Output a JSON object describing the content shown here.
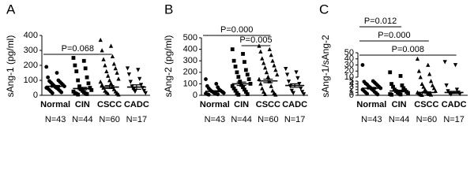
{
  "chart_data": [
    {
      "type": "dot",
      "panel": "A",
      "ylabel": "sAng-1 (pg/ml)",
      "categories": [
        "Normal",
        "CIN",
        "CSCC",
        "CADC"
      ],
      "n_labels": [
        "N=43",
        "N=44",
        "N=60",
        "N=17"
      ],
      "ylim": [
        0,
        400
      ],
      "yticks": [
        0,
        100,
        200,
        300,
        400
      ],
      "color": "#000000",
      "markers": [
        "circle",
        "square",
        "triangle",
        "triangle-down"
      ],
      "groups": [
        {
          "values": [
            190,
            150,
            120,
            100,
            95,
            90,
            85,
            80,
            75,
            70,
            65,
            60,
            55,
            50,
            48,
            45,
            40,
            35,
            30,
            25,
            20,
            15
          ],
          "mean": 60,
          "sem": 6
        },
        {
          "values": [
            250,
            230,
            200,
            180,
            160,
            120,
            100,
            80,
            60,
            50,
            40,
            35,
            30,
            25,
            20,
            15,
            12,
            10,
            8,
            5
          ],
          "mean": 45,
          "sem": 8
        },
        {
          "values": [
            370,
            330,
            300,
            260,
            240,
            210,
            200,
            180,
            160,
            150,
            130,
            110,
            100,
            90,
            80,
            70,
            60,
            50,
            40,
            30,
            25,
            20,
            15,
            10,
            5
          ],
          "mean": 55,
          "sem": 10
        },
        {
          "values": [
            180,
            170,
            140,
            110,
            90,
            70,
            60,
            50,
            40,
            30,
            25,
            15
          ],
          "mean": 55,
          "sem": 15
        }
      ],
      "comparisons": [
        {
          "label": "P=0.068",
          "from": 0,
          "to": 2
        }
      ]
    },
    {
      "type": "dot",
      "panel": "B",
      "ylabel": "sAng-2 (pg/ml)",
      "categories": [
        "Normal",
        "CIN",
        "CSCC",
        "CADC"
      ],
      "n_labels": [
        "N=43",
        "N=44",
        "N=60",
        "N=17"
      ],
      "ylim": [
        0,
        500
      ],
      "yticks": [
        0,
        100,
        200,
        300,
        400,
        500
      ],
      "color": "#000000",
      "markers": [
        "circle",
        "square",
        "triangle",
        "triangle-down"
      ],
      "groups": [
        {
          "values": [
            140,
            100,
            80,
            70,
            60,
            50,
            45,
            40,
            35,
            30,
            25,
            20,
            18,
            15,
            12,
            10,
            8,
            5
          ],
          "mean": 35,
          "sem": 5
        },
        {
          "values": [
            400,
            360,
            300,
            290,
            250,
            220,
            200,
            180,
            160,
            140,
            120,
            100,
            90,
            80,
            70,
            60,
            50,
            40,
            30,
            20,
            10,
            5
          ],
          "mean": 100,
          "sem": 15
        },
        {
          "values": [
            430,
            400,
            380,
            350,
            320,
            300,
            280,
            260,
            240,
            220,
            200,
            180,
            160,
            140,
            120,
            100,
            80,
            60,
            40,
            30,
            20,
            10,
            5
          ],
          "mean": 125,
          "sem": 15
        },
        {
          "values": [
            230,
            200,
            180,
            150,
            120,
            100,
            80,
            60,
            40,
            30,
            20,
            10
          ],
          "mean": 85,
          "sem": 15
        }
      ],
      "comparisons": [
        {
          "label": "P=0.000",
          "from": 0,
          "to": 2
        },
        {
          "label": "P=0.005",
          "from": 1,
          "to": 2
        }
      ]
    },
    {
      "type": "dot",
      "panel": "C",
      "ylabel": "sAng-1/sAng-2",
      "categories": [
        "Normal",
        "CIN",
        "CSCC",
        "CADC"
      ],
      "n_labels": [
        "N=43",
        "N=44",
        "N=60",
        "N=17"
      ],
      "ylim": [
        0,
        50
      ],
      "yticks": [
        0,
        1,
        2,
        3,
        4,
        5,
        10,
        20,
        30,
        40,
        50
      ],
      "axis_break": [
        5,
        10
      ],
      "color": "#000000",
      "markers": [
        "circle",
        "square",
        "triangle",
        "triangle-down"
      ],
      "groups": [
        {
          "values": [
            30,
            5,
            4.8,
            4.5,
            4.2,
            4,
            3.8,
            3.5,
            3.2,
            3,
            2.8,
            2.5,
            2.2,
            2,
            1.8,
            1.5,
            1.2,
            1,
            0.8,
            0.5,
            0.3
          ],
          "mean": 2.5,
          "sem": 0.3
        },
        {
          "values": [
            18,
            12,
            4,
            3.5,
            3,
            2.5,
            2,
            1.8,
            1.5,
            1.2,
            1,
            0.8,
            0.6,
            0.4,
            0.3,
            0.2
          ],
          "mean": 1.5,
          "sem": 0.3
        },
        {
          "values": [
            40,
            30,
            20,
            15,
            10,
            5,
            4,
            3.5,
            3,
            2.5,
            2,
            1.5,
            1.2,
            1,
            0.8,
            0.6,
            0.4,
            0.3,
            0.2,
            0.1
          ],
          "mean": 1.0,
          "sem": 0.2
        },
        {
          "values": [
            35,
            30,
            3.5,
            2,
            1.5,
            1,
            0.8,
            0.5,
            0.3
          ],
          "mean": 1.0,
          "sem": 0.4
        }
      ],
      "comparisons": [
        {
          "label": "P=0.012",
          "from": 0,
          "to": 1
        },
        {
          "label": "P=0.000",
          "from": 0,
          "to": 2
        },
        {
          "label": "P=0.008",
          "from": 0,
          "to": 3
        }
      ]
    }
  ]
}
